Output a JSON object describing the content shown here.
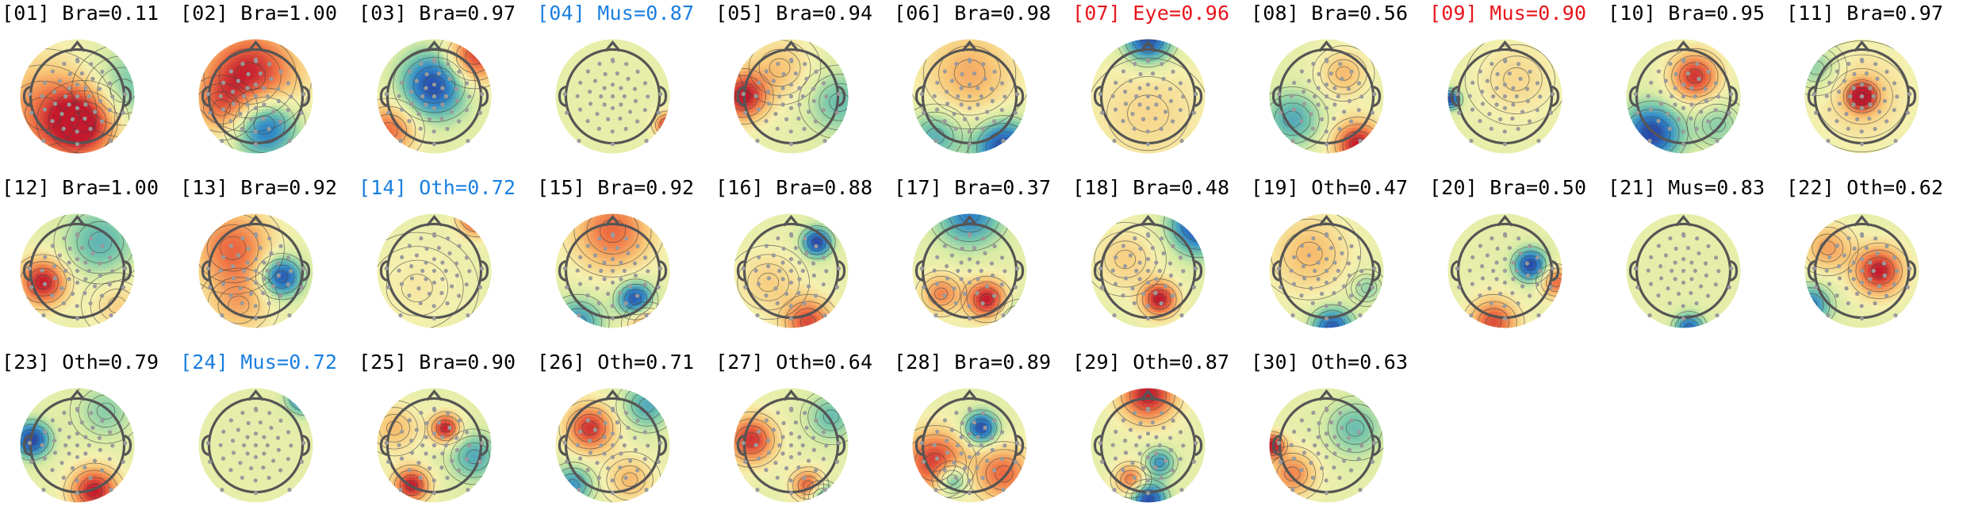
{
  "colors": {
    "normal_label": "#000000",
    "rejected_label": "#e8151b",
    "flagged_label": "#1a7fe0",
    "sensor": "#9a9a9a",
    "head": "#555555",
    "contour": "#444444"
  },
  "components": [
    {
      "label": "[01] Bra=0.11",
      "status": "normal",
      "blobs": [
        [
          0.1,
          0.45,
          1.0,
          0.45
        ],
        [
          -0.6,
          0.3,
          0.55,
          0.7
        ],
        [
          0.8,
          -0.1,
          -0.45,
          0.5
        ]
      ]
    },
    {
      "label": "[02] Bra=1.00",
      "status": "normal",
      "blobs": [
        [
          -0.1,
          -0.35,
          1.0,
          0.6
        ],
        [
          0.15,
          0.5,
          -1.0,
          0.4
        ],
        [
          -0.6,
          0.2,
          0.4,
          0.35
        ]
      ]
    },
    {
      "label": "[03] Bra=0.97",
      "status": "normal",
      "blobs": [
        [
          0.0,
          -0.2,
          -1.0,
          0.4
        ],
        [
          0.7,
          -0.7,
          0.9,
          0.35
        ],
        [
          -0.8,
          0.6,
          0.7,
          0.35
        ]
      ]
    },
    {
      "label": "[04] Mus=0.87",
      "status": "flagged",
      "blobs": [
        [
          0.95,
          0.5,
          0.9,
          0.15
        ]
      ]
    },
    {
      "label": "[05] Bra=0.94",
      "status": "normal",
      "blobs": [
        [
          -0.85,
          0.0,
          1.0,
          0.3
        ],
        [
          0.85,
          0.1,
          -0.4,
          0.4
        ],
        [
          -0.2,
          -0.5,
          0.35,
          0.4
        ]
      ]
    },
    {
      "label": "[06] Bra=0.98",
      "status": "normal",
      "blobs": [
        [
          0.6,
          0.9,
          -1.0,
          0.35
        ],
        [
          -0.6,
          0.7,
          -0.5,
          0.35
        ],
        [
          0.0,
          -0.4,
          0.45,
          0.6
        ]
      ]
    },
    {
      "label": "[07] Eye=0.96",
      "status": "rejected",
      "blobs": [
        [
          0.0,
          -1.0,
          -1.0,
          0.3
        ],
        [
          0.0,
          0.3,
          0.25,
          0.8
        ]
      ]
    },
    {
      "label": "[08] Bra=0.56",
      "status": "normal",
      "blobs": [
        [
          0.55,
          0.85,
          1.0,
          0.3
        ],
        [
          -0.6,
          0.4,
          -0.5,
          0.35
        ],
        [
          0.3,
          -0.4,
          0.4,
          0.3
        ]
      ]
    },
    {
      "label": "[09] Mus=0.90",
      "status": "rejected",
      "blobs": [
        [
          -0.95,
          0.05,
          -1.0,
          0.12
        ],
        [
          0.2,
          -0.3,
          0.25,
          0.5
        ]
      ]
    },
    {
      "label": "[10] Bra=0.95",
      "status": "normal",
      "blobs": [
        [
          0.2,
          -0.35,
          0.9,
          0.3
        ],
        [
          -0.55,
          0.65,
          -1.0,
          0.35
        ],
        [
          0.6,
          0.5,
          -0.3,
          0.3
        ]
      ]
    },
    {
      "label": "[11] Bra=0.97",
      "status": "normal",
      "blobs": [
        [
          0.0,
          0.0,
          1.0,
          0.18
        ],
        [
          0.0,
          0.0,
          0.3,
          0.6
        ],
        [
          -0.8,
          -0.5,
          -0.35,
          0.3
        ]
      ]
    },
    {
      "label": "[12] Bra=1.00",
      "status": "normal",
      "blobs": [
        [
          -0.6,
          0.2,
          1.0,
          0.3
        ],
        [
          0.4,
          -0.5,
          -0.45,
          0.45
        ],
        [
          0.7,
          0.6,
          0.3,
          0.35
        ]
      ]
    },
    {
      "label": "[13] Bra=0.92",
      "status": "normal",
      "blobs": [
        [
          0.45,
          0.1,
          -1.0,
          0.25
        ],
        [
          -0.4,
          -0.4,
          0.7,
          0.5
        ],
        [
          -0.3,
          0.6,
          0.4,
          0.4
        ]
      ]
    },
    {
      "label": "[14] Oth=0.72",
      "status": "flagged",
      "blobs": [
        [
          0.75,
          -0.95,
          1.0,
          0.22
        ],
        [
          -0.3,
          0.3,
          0.15,
          0.6
        ]
      ]
    },
    {
      "label": "[15] Bra=0.92",
      "status": "normal",
      "blobs": [
        [
          0.0,
          -0.7,
          0.7,
          0.5
        ],
        [
          0.4,
          0.5,
          -1.0,
          0.22
        ],
        [
          -0.6,
          0.9,
          -0.6,
          0.3
        ],
        [
          0.6,
          0.95,
          0.7,
          0.25
        ]
      ]
    },
    {
      "label": "[16] Bra=0.88",
      "status": "normal",
      "blobs": [
        [
          0.45,
          -0.5,
          -1.0,
          0.18
        ],
        [
          0.3,
          0.9,
          0.8,
          0.3
        ],
        [
          -0.4,
          0.2,
          0.3,
          0.4
        ]
      ]
    },
    {
      "label": "[17] Bra=0.37",
      "status": "normal",
      "blobs": [
        [
          0.3,
          0.5,
          1.0,
          0.25
        ],
        [
          -0.5,
          0.4,
          0.6,
          0.25
        ],
        [
          0.0,
          -1.0,
          -0.7,
          0.4
        ],
        [
          0.9,
          0.9,
          -0.6,
          0.25
        ]
      ]
    },
    {
      "label": "[18] Bra=0.48",
      "status": "normal",
      "blobs": [
        [
          0.2,
          0.5,
          1.0,
          0.22
        ],
        [
          0.9,
          -0.8,
          -1.0,
          0.35
        ],
        [
          -0.4,
          -0.2,
          0.3,
          0.4
        ]
      ]
    },
    {
      "label": "[19] Oth=0.47",
      "status": "normal",
      "blobs": [
        [
          0.1,
          1.0,
          -0.9,
          0.25
        ],
        [
          -0.3,
          -0.3,
          0.4,
          0.5
        ],
        [
          0.7,
          0.3,
          -0.3,
          0.2
        ]
      ]
    },
    {
      "label": "[20] Bra=0.50",
      "status": "normal",
      "blobs": [
        [
          0.45,
          -0.1,
          -1.0,
          0.2
        ],
        [
          -0.2,
          0.9,
          0.8,
          0.3
        ],
        [
          0.9,
          0.2,
          0.7,
          0.2
        ]
      ]
    },
    {
      "label": "[21] Mus=0.83",
      "status": "normal",
      "blobs": [
        [
          0.1,
          1.0,
          -0.8,
          0.18
        ]
      ]
    },
    {
      "label": "[22] Oth=0.62",
      "status": "normal",
      "blobs": [
        [
          0.3,
          0.0,
          1.0,
          0.3
        ],
        [
          -0.9,
          0.6,
          -0.7,
          0.25
        ],
        [
          -0.6,
          -0.4,
          0.5,
          0.3
        ]
      ]
    },
    {
      "label": "[23] Oth=0.79",
      "status": "normal",
      "blobs": [
        [
          0.3,
          0.8,
          1.0,
          0.3
        ],
        [
          -0.8,
          -0.1,
          -1.0,
          0.22
        ],
        [
          0.5,
          -0.6,
          -0.3,
          0.35
        ]
      ]
    },
    {
      "label": "[24] Mus=0.72",
      "status": "flagged",
      "blobs": [
        [
          0.85,
          -0.85,
          -0.9,
          0.2
        ]
      ]
    },
    {
      "label": "[25] Bra=0.90",
      "status": "normal",
      "blobs": [
        [
          0.2,
          -0.3,
          1.0,
          0.18
        ],
        [
          -0.4,
          0.7,
          1.0,
          0.22
        ],
        [
          0.7,
          0.2,
          -0.5,
          0.3
        ],
        [
          -0.7,
          -0.3,
          0.4,
          0.3
        ]
      ]
    },
    {
      "label": "[26] Oth=0.71",
      "status": "normal",
      "blobs": [
        [
          -0.4,
          -0.3,
          0.9,
          0.3
        ],
        [
          0.6,
          -0.7,
          -0.5,
          0.3
        ],
        [
          -0.7,
          0.7,
          -0.6,
          0.25
        ],
        [
          0.3,
          0.6,
          0.4,
          0.3
        ]
      ]
    },
    {
      "label": "[27] Oth=0.64",
      "status": "normal",
      "blobs": [
        [
          -0.7,
          -0.1,
          0.9,
          0.3
        ],
        [
          0.3,
          0.7,
          0.8,
          0.2
        ],
        [
          0.55,
          0.9,
          -0.7,
          0.18
        ],
        [
          0.7,
          -0.5,
          -0.4,
          0.3
        ]
      ]
    },
    {
      "label": "[28] Bra=0.89",
      "status": "normal",
      "blobs": [
        [
          0.2,
          -0.3,
          -1.0,
          0.2
        ],
        [
          -0.3,
          0.6,
          -0.8,
          0.2
        ],
        [
          -0.6,
          0.3,
          0.9,
          0.4
        ],
        [
          0.6,
          0.5,
          0.7,
          0.35
        ]
      ]
    },
    {
      "label": "[29] Oth=0.87",
      "status": "normal",
      "blobs": [
        [
          0.0,
          -0.9,
          1.0,
          0.35
        ],
        [
          0.0,
          0.95,
          -1.0,
          0.22
        ],
        [
          0.2,
          0.3,
          -0.6,
          0.18
        ],
        [
          -0.3,
          0.6,
          0.7,
          0.2
        ]
      ]
    },
    {
      "label": "[30] Oth=0.63",
      "status": "normal",
      "blobs": [
        [
          -0.95,
          0.0,
          1.0,
          0.15
        ],
        [
          -0.6,
          0.5,
          0.6,
          0.3
        ],
        [
          0.5,
          -0.3,
          -0.4,
          0.35
        ]
      ]
    }
  ]
}
